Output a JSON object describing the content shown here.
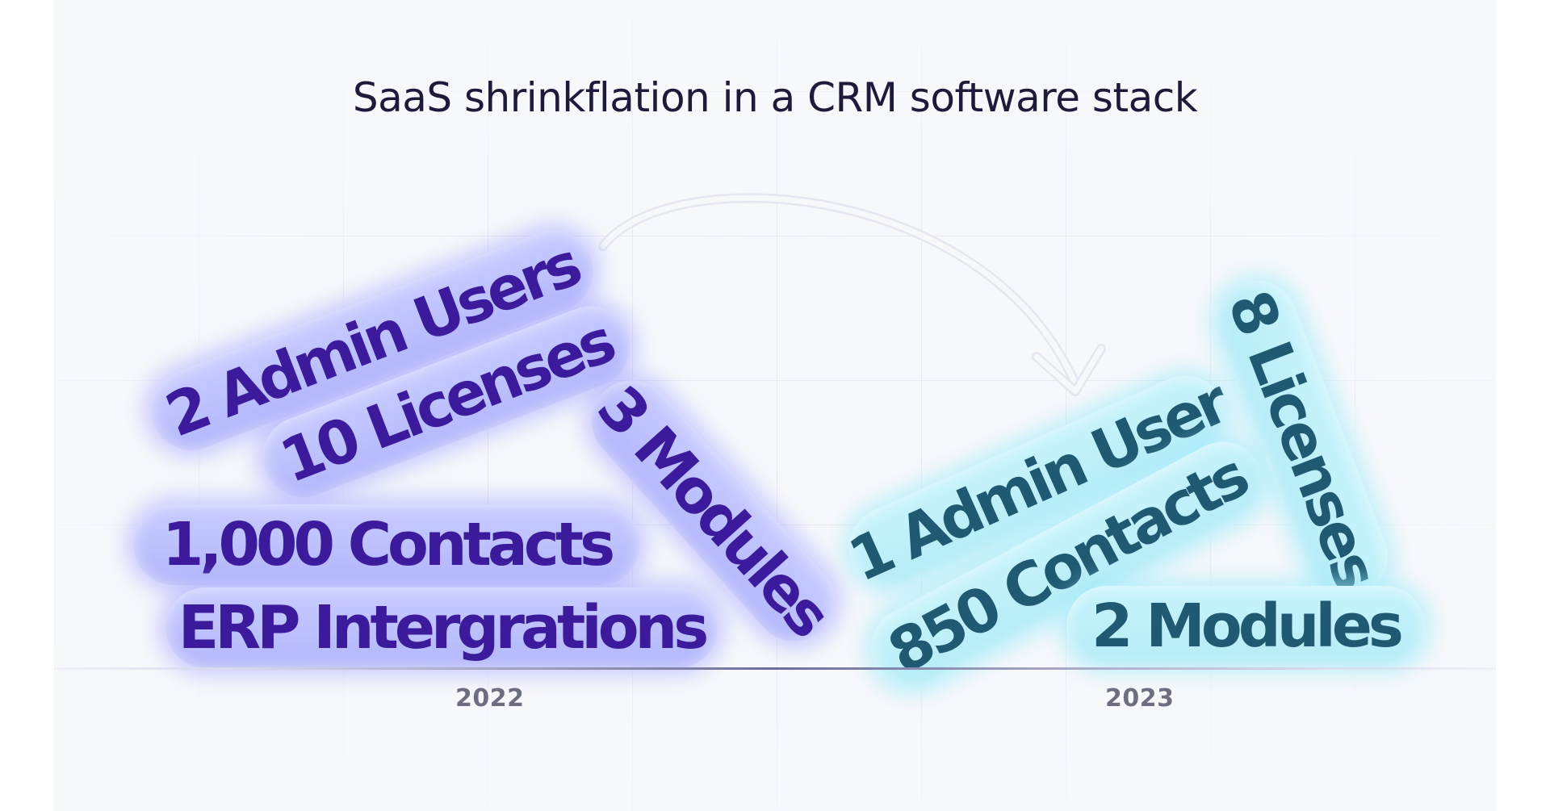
{
  "title": "SaaS shrinkflation in a CRM software stack",
  "years": {
    "left": "2022",
    "right": "2023"
  },
  "items_2022": [
    "2 Admin Users",
    "10 Licenses",
    "3 Modules",
    "1,000 Contacts",
    "ERP Intergrations"
  ],
  "items_2023": [
    "1 Admin User",
    "850 Contacts",
    "8 Licenses",
    "2 Modules"
  ],
  "colors": {
    "pill_2022_bg": "#b9bcfc",
    "pill_2022_text": "#3c1a9c",
    "pill_2023_bg": "#bdf0f9",
    "pill_2023_text": "#1f5a72",
    "title": "#1d1b3a",
    "year_label": "#6b6f7f"
  }
}
